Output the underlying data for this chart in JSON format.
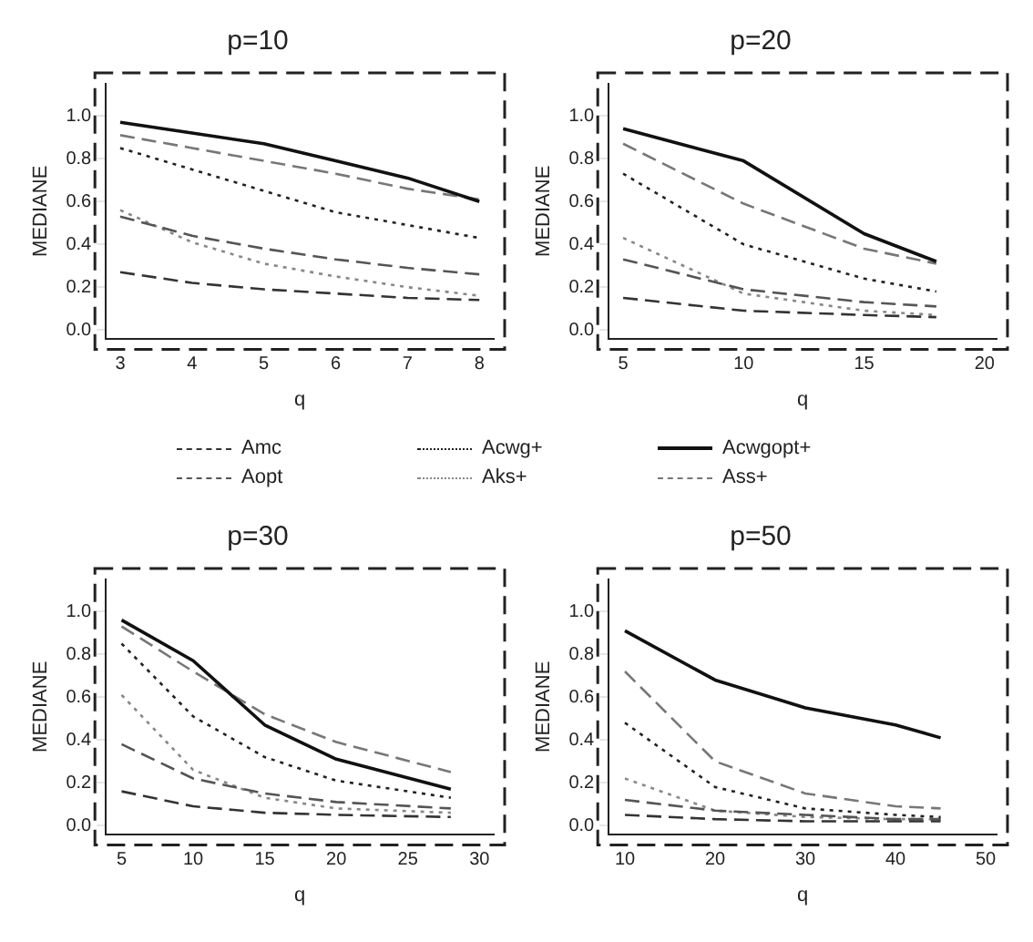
{
  "chart_data": [
    {
      "type": "line",
      "title": "p=10",
      "xlabel": "q",
      "ylabel": "MEDIANE",
      "x": [
        3,
        4,
        5,
        6,
        7,
        8
      ],
      "xlim": [
        2.8,
        8.2
      ],
      "xticks": [
        3,
        4,
        5,
        6,
        7,
        8
      ],
      "ylim": [
        -0.04,
        1.15
      ],
      "yticks": [
        {
          "value": 0,
          "label": "0.0"
        },
        {
          "value": 0.2,
          "label": "0.2"
        },
        {
          "value": 0.4,
          "label": "0.4"
        },
        {
          "value": 0.6,
          "label": "0.6"
        },
        {
          "value": 0.8,
          "label": "0.8"
        },
        {
          "value": 1,
          "label": "1.0"
        }
      ],
      "grid": false,
      "marker": "none",
      "legend": "bottom",
      "series": [
        {
          "name": "Amc",
          "color": "#333333",
          "line_style": "dashed",
          "values": [
            0.27,
            0.22,
            0.19,
            0.17,
            0.15,
            0.14
          ]
        },
        {
          "name": "Acwg+",
          "color": "#222222",
          "line_style": "dotted",
          "values": [
            0.85,
            0.75,
            0.65,
            0.55,
            0.49,
            0.43
          ]
        },
        {
          "name": "Acwgopt+",
          "color": "#111111",
          "line_style": "solid",
          "values": [
            0.97,
            0.92,
            0.87,
            0.79,
            0.71,
            0.6
          ]
        },
        {
          "name": "Aopt",
          "color": "#555555",
          "line_style": "dashed",
          "values": [
            0.53,
            0.44,
            0.38,
            0.33,
            0.29,
            0.26
          ]
        },
        {
          "name": "Aks+",
          "color": "#888888",
          "line_style": "dotted",
          "values": [
            0.56,
            0.41,
            0.31,
            0.25,
            0.2,
            0.16
          ]
        },
        {
          "name": "Ass+",
          "color": "#777777",
          "line_style": "dashed",
          "values": [
            0.91,
            0.85,
            0.79,
            0.73,
            0.66,
            0.61
          ]
        }
      ]
    },
    {
      "type": "line",
      "title": "p=20",
      "xlabel": "q",
      "ylabel": "MEDIANE",
      "x": [
        5,
        10,
        15,
        18
      ],
      "xlim": [
        4.4,
        20.5
      ],
      "xticks": [
        5,
        10,
        15,
        20
      ],
      "ylim": [
        -0.04,
        1.15
      ],
      "yticks": [
        {
          "value": 0,
          "label": "0.0"
        },
        {
          "value": 0.2,
          "label": "0.2"
        },
        {
          "value": 0.4,
          "label": "0.4"
        },
        {
          "value": 0.6,
          "label": "0.6"
        },
        {
          "value": 0.8,
          "label": "0.8"
        },
        {
          "value": 1,
          "label": "1.0"
        }
      ],
      "grid": false,
      "marker": "none",
      "series": [
        {
          "color": "#333333",
          "line_style": "dashed",
          "values": [
            0.15,
            0.09,
            0.07,
            0.06
          ]
        },
        {
          "color": "#222222",
          "line_style": "dotted",
          "values": [
            0.73,
            0.4,
            0.24,
            0.18
          ]
        },
        {
          "color": "#111111",
          "line_style": "solid",
          "values": [
            0.94,
            0.79,
            0.45,
            0.32
          ]
        },
        {
          "color": "#555555",
          "line_style": "dashed",
          "values": [
            0.33,
            0.19,
            0.13,
            0.11
          ]
        },
        {
          "color": "#888888",
          "line_style": "dotted",
          "values": [
            0.43,
            0.17,
            0.09,
            0.07
          ]
        },
        {
          "color": "#777777",
          "line_style": "dashed",
          "values": [
            0.87,
            0.59,
            0.38,
            0.31
          ]
        }
      ]
    },
    {
      "type": "line",
      "title": "p=30",
      "xlabel": "q",
      "ylabel": "MEDIANE",
      "x": [
        5,
        10,
        15,
        20,
        28
      ],
      "xlim": [
        3.9,
        31
      ],
      "xticks": [
        5,
        10,
        15,
        20,
        25,
        30
      ],
      "ylim": [
        -0.04,
        1.15
      ],
      "yticks": [
        {
          "value": 0,
          "label": "0.0"
        },
        {
          "value": 0.2,
          "label": "0.2"
        },
        {
          "value": 0.4,
          "label": "0.4"
        },
        {
          "value": 0.6,
          "label": "0.6"
        },
        {
          "value": 0.8,
          "label": "0.8"
        },
        {
          "value": 1,
          "label": "1.0"
        }
      ],
      "grid": false,
      "marker": "none",
      "series": [
        {
          "color": "#333333",
          "line_style": "dashed",
          "values": [
            0.16,
            0.09,
            0.06,
            0.05,
            0.04
          ]
        },
        {
          "color": "#222222",
          "line_style": "dotted",
          "values": [
            0.85,
            0.51,
            0.32,
            0.21,
            0.13
          ]
        },
        {
          "color": "#111111",
          "line_style": "solid",
          "values": [
            0.96,
            0.77,
            0.47,
            0.31,
            0.17
          ]
        },
        {
          "color": "#555555",
          "line_style": "dashed",
          "values": [
            0.38,
            0.22,
            0.15,
            0.11,
            0.08
          ]
        },
        {
          "color": "#888888",
          "line_style": "dotted",
          "values": [
            0.61,
            0.26,
            0.13,
            0.08,
            0.06
          ]
        },
        {
          "color": "#777777",
          "line_style": "dashed",
          "values": [
            0.93,
            0.72,
            0.52,
            0.39,
            0.25
          ]
        }
      ]
    },
    {
      "type": "line",
      "title": "p=50",
      "xlabel": "q",
      "ylabel": "MEDIANE",
      "x": [
        10,
        20,
        30,
        40,
        45
      ],
      "xlim": [
        8.2,
        51.2
      ],
      "xticks": [
        10,
        20,
        30,
        40,
        50
      ],
      "ylim": [
        -0.04,
        1.15
      ],
      "yticks": [
        {
          "value": 0,
          "label": "0.0"
        },
        {
          "value": 0.2,
          "label": "0.2"
        },
        {
          "value": 0.4,
          "label": "0.4"
        },
        {
          "value": 0.6,
          "label": "0.6"
        },
        {
          "value": 0.8,
          "label": "0.8"
        },
        {
          "value": 1,
          "label": "1.0"
        }
      ],
      "grid": false,
      "marker": "none",
      "series": [
        {
          "color": "#333333",
          "line_style": "dashed",
          "values": [
            0.05,
            0.03,
            0.02,
            0.02,
            0.02
          ]
        },
        {
          "color": "#222222",
          "line_style": "dotted",
          "values": [
            0.48,
            0.18,
            0.08,
            0.05,
            0.04
          ]
        },
        {
          "color": "#111111",
          "line_style": "solid",
          "values": [
            0.91,
            0.68,
            0.55,
            0.47,
            0.41
          ]
        },
        {
          "color": "#555555",
          "line_style": "dashed",
          "values": [
            0.12,
            0.07,
            0.05,
            0.03,
            0.03
          ]
        },
        {
          "color": "#888888",
          "line_style": "dotted",
          "values": [
            0.22,
            0.07,
            0.04,
            0.03,
            0.03
          ]
        },
        {
          "color": "#777777",
          "line_style": "dashed",
          "values": [
            0.72,
            0.3,
            0.15,
            0.09,
            0.08
          ]
        }
      ]
    }
  ]
}
